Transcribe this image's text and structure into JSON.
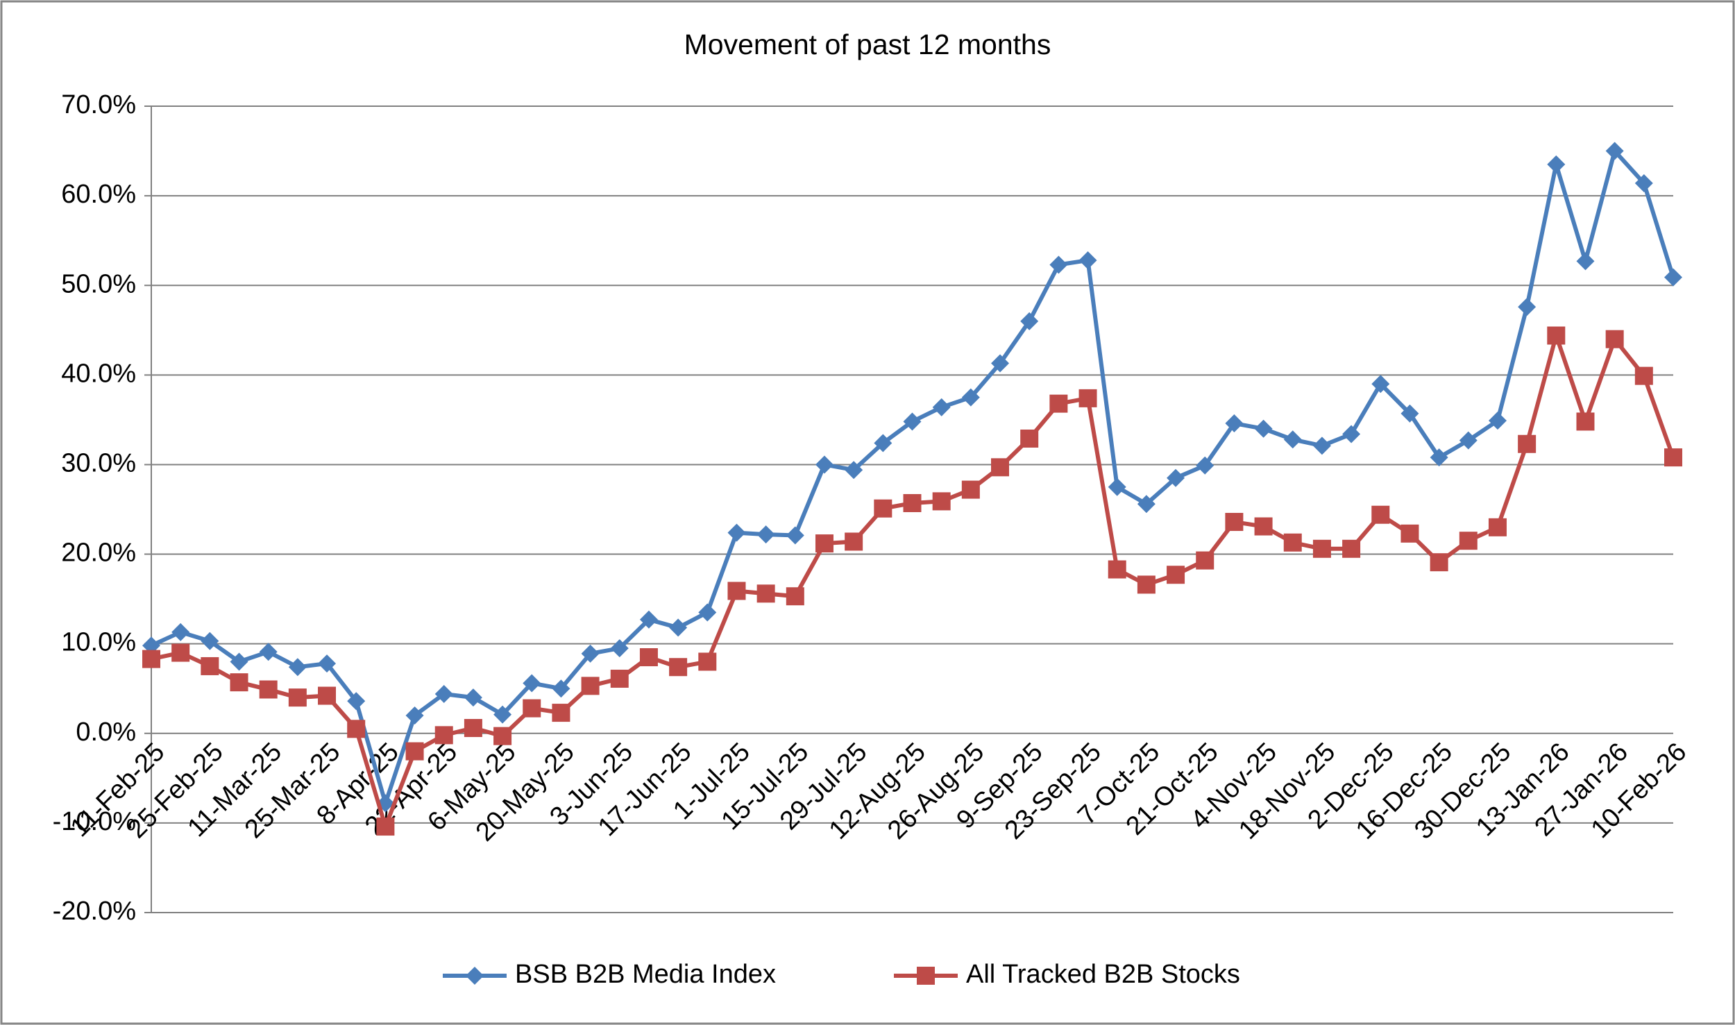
{
  "chart_data": {
    "type": "line",
    "title": "Movement of past 12 months",
    "categories": [
      "11-Feb-25",
      null,
      "25-Feb-25",
      null,
      "11-Mar-25",
      null,
      "25-Mar-25",
      null,
      "8-Apr-25",
      null,
      "22-Apr-25",
      null,
      "6-May-25",
      null,
      "20-May-25",
      null,
      "3-Jun-25",
      null,
      "17-Jun-25",
      null,
      "1-Jul-25",
      null,
      "15-Jul-25",
      null,
      "29-Jul-25",
      null,
      "12-Aug-25",
      null,
      "26-Aug-25",
      null,
      "9-Sep-25",
      null,
      "23-Sep-25",
      null,
      "7-Oct-25",
      null,
      "21-Oct-25",
      null,
      "4-Nov-25",
      null,
      "18-Nov-25",
      null,
      "2-Dec-25",
      null,
      "16-Dec-25",
      null,
      "30-Dec-25",
      null,
      "13-Jan-26",
      null,
      "27-Jan-26",
      null,
      "10-Feb-26"
    ],
    "series": [
      {
        "name": "BSB B2B Media Index",
        "color": "#4a7ebb",
        "marker": "diamond",
        "values": [
          9.8,
          11.3,
          10.3,
          8.0,
          9.1,
          7.4,
          7.8,
          3.6,
          -7.8,
          2.0,
          4.4,
          4.0,
          2.1,
          5.6,
          5.0,
          8.9,
          9.5,
          12.7,
          11.8,
          13.5,
          22.4,
          22.2,
          22.1,
          30.0,
          29.4,
          32.4,
          34.8,
          36.4,
          37.5,
          41.3,
          46.0,
          52.3,
          52.8,
          27.5,
          25.6,
          28.5,
          29.9,
          34.6,
          34.0,
          32.8,
          32.1,
          33.4,
          39.0,
          35.7,
          30.8,
          32.7,
          34.9,
          47.6,
          63.5,
          52.7,
          65.0,
          61.4,
          50.9
        ]
      },
      {
        "name": "All Tracked B2B Stocks",
        "color": "#be4b48",
        "marker": "square",
        "values": [
          8.3,
          9.0,
          7.5,
          5.7,
          4.9,
          4.0,
          4.2,
          0.5,
          -10.4,
          -2.0,
          -0.2,
          0.6,
          -0.3,
          2.8,
          2.3,
          5.3,
          6.1,
          8.5,
          7.4,
          8.0,
          15.9,
          15.6,
          15.3,
          21.2,
          21.4,
          25.1,
          25.7,
          25.9,
          27.2,
          29.7,
          32.9,
          36.8,
          37.4,
          18.3,
          16.6,
          17.7,
          19.3,
          23.6,
          23.1,
          21.3,
          20.6,
          20.6,
          24.4,
          22.3,
          19.1,
          21.5,
          23.0,
          32.3,
          44.4,
          34.8,
          44.0,
          39.9,
          30.8
        ]
      }
    ],
    "ylim": [
      -20,
      70
    ],
    "yticks": [
      {
        "value": -20,
        "label": "-20.0%"
      },
      {
        "value": -10,
        "label": "-10.0%"
      },
      {
        "value": 0,
        "label": "0.0%"
      },
      {
        "value": 10,
        "label": "10.0%"
      },
      {
        "value": 20,
        "label": "20.0%"
      },
      {
        "value": 30,
        "label": "30.0%"
      },
      {
        "value": 40,
        "label": "40.0%"
      },
      {
        "value": 50,
        "label": "50.0%"
      },
      {
        "value": 60,
        "label": "60.0%"
      },
      {
        "value": 70,
        "label": "70.0%"
      }
    ],
    "grid": true,
    "legend": "bottom"
  }
}
